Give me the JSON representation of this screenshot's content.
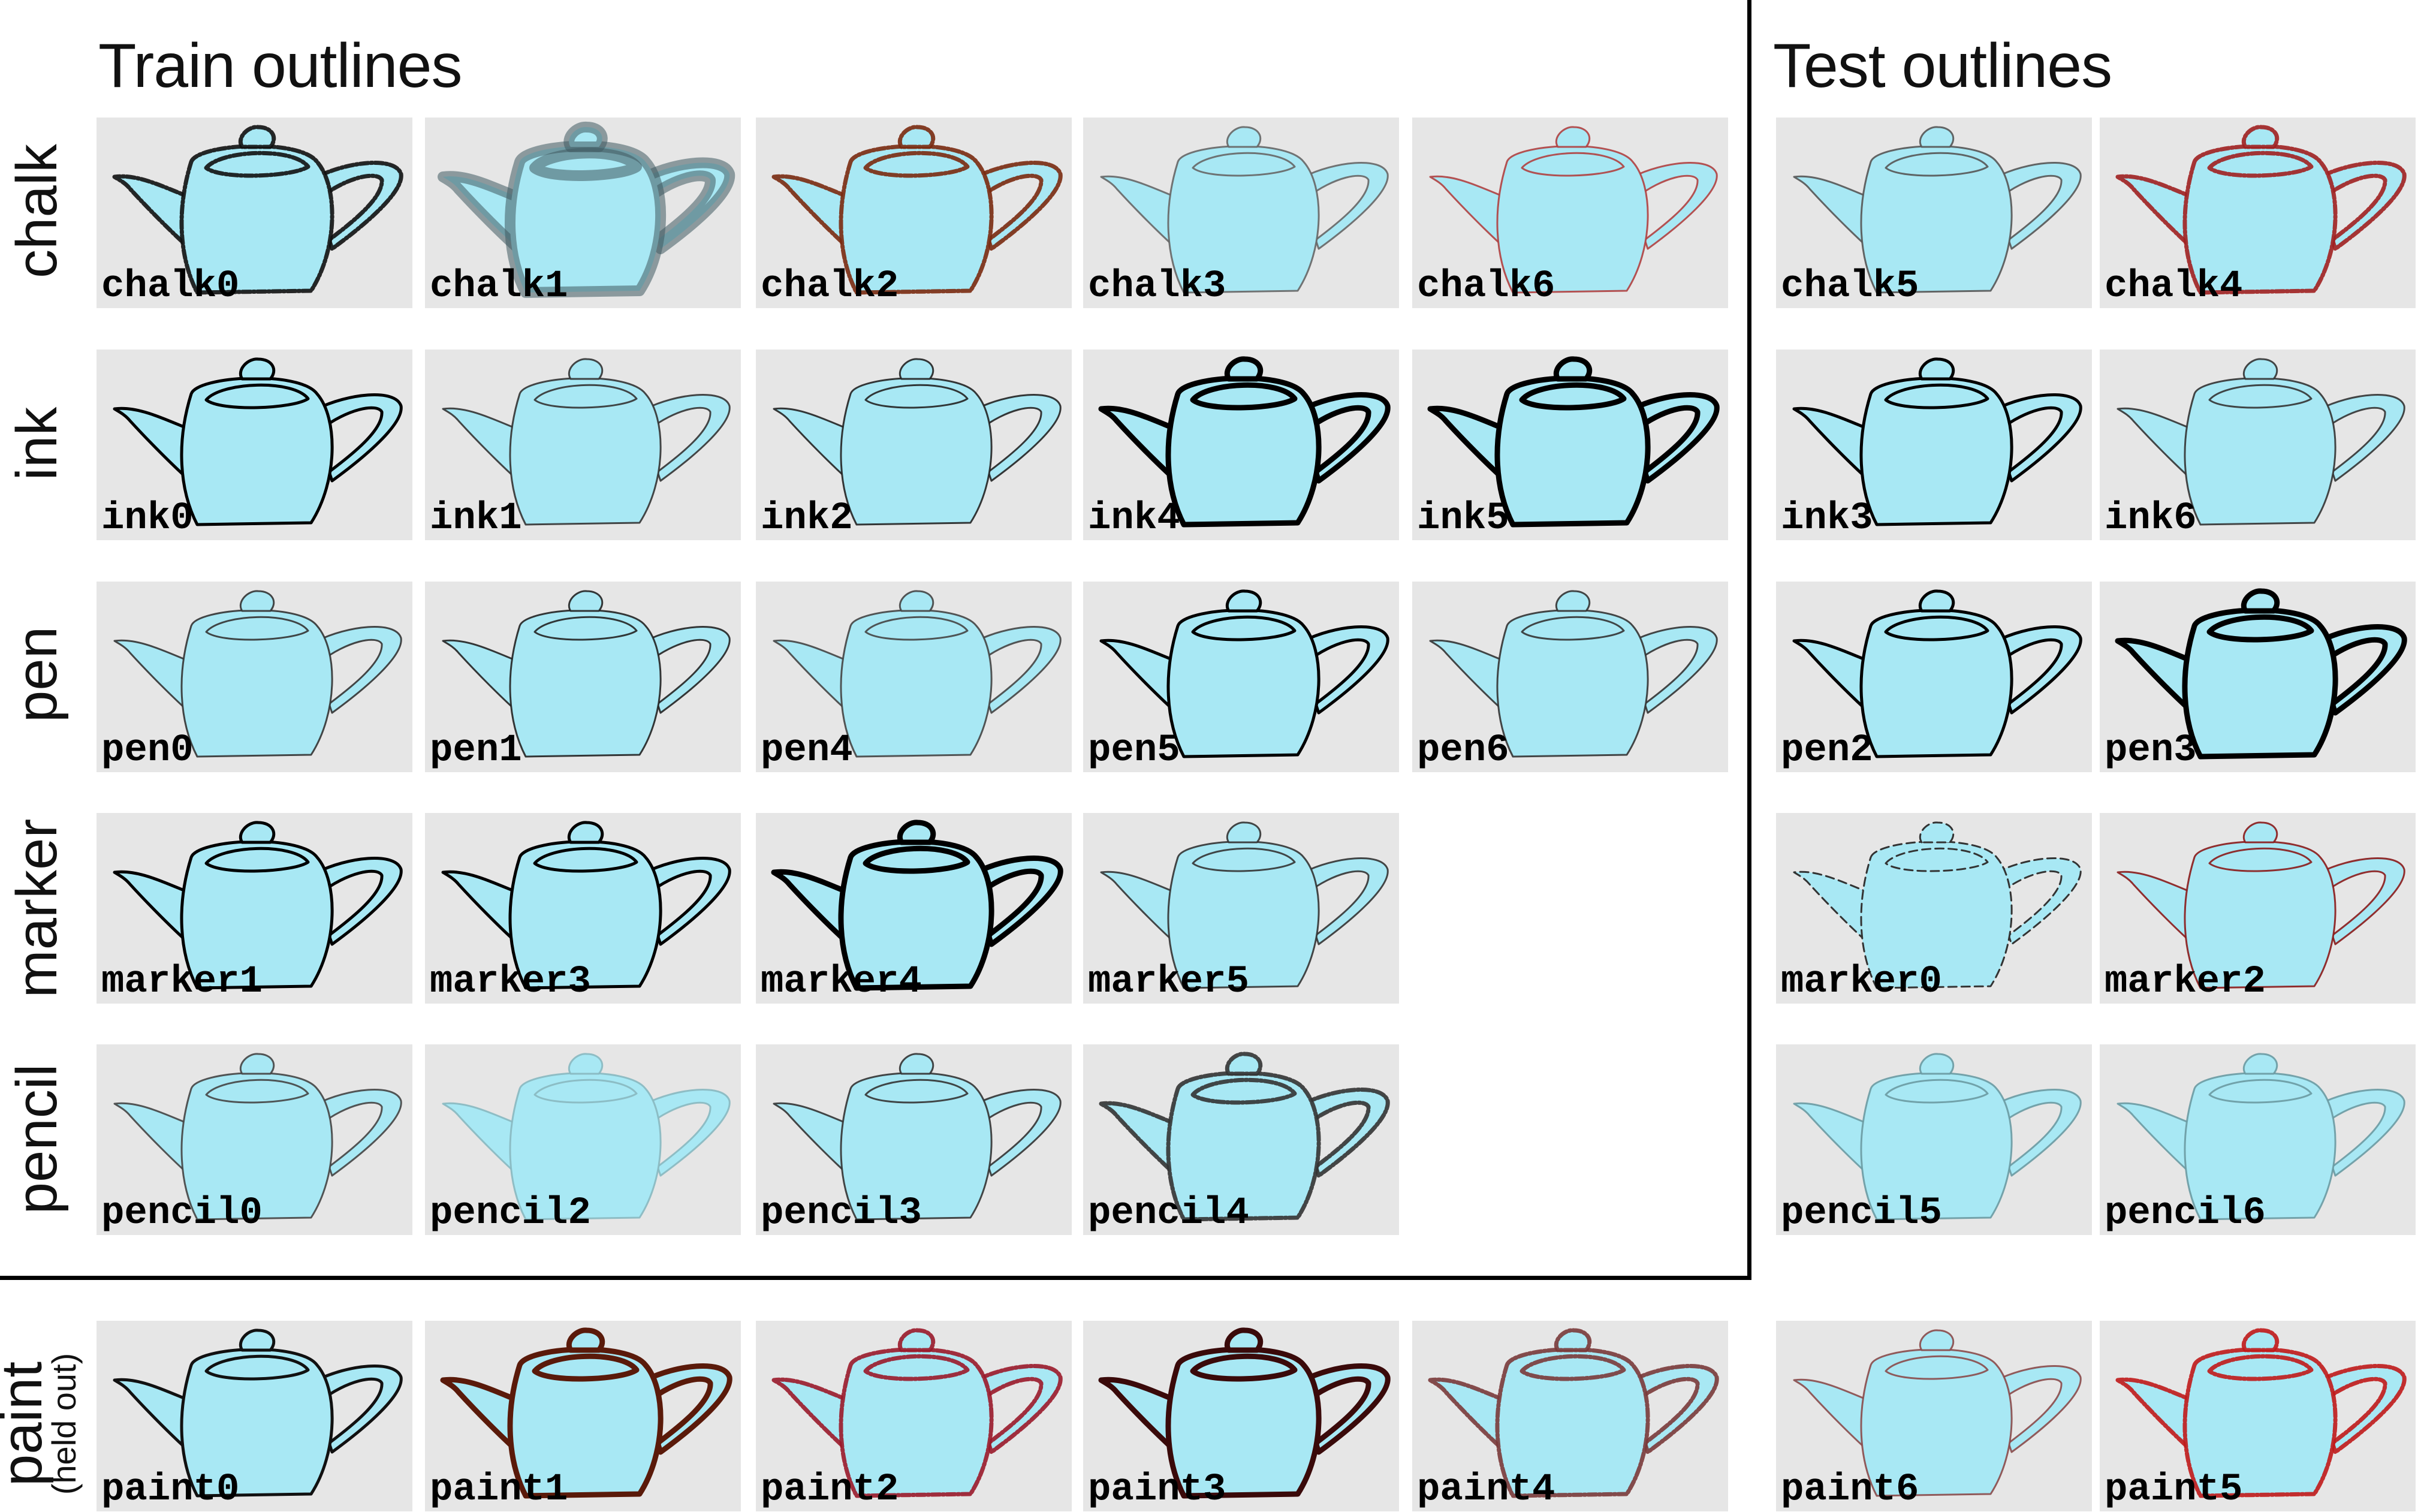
{
  "headings": {
    "train": "Train outlines",
    "test": "Test outlines"
  },
  "row_labels": [
    {
      "label": "chalk",
      "sub": ""
    },
    {
      "label": "ink",
      "sub": ""
    },
    {
      "label": "pen",
      "sub": ""
    },
    {
      "label": "marker",
      "sub": ""
    },
    {
      "label": "pencil",
      "sub": ""
    },
    {
      "label": "paint",
      "sub": "(held out)"
    }
  ],
  "fill_color": "#a8e8f4",
  "tile_background": "#e6e6e6",
  "rows": [
    {
      "train": [
        {
          "label": "chalk0",
          "stroke": "#111111",
          "style": "chalk"
        },
        {
          "label": "chalk1",
          "stroke": "#3f5a60",
          "style": "blur"
        },
        {
          "label": "chalk2",
          "stroke": "#7a2a10",
          "style": "chalk"
        },
        {
          "label": "chalk3",
          "stroke": "#666666",
          "style": "thin"
        },
        {
          "label": "chalk6",
          "stroke": "#b04040",
          "style": "thin"
        }
      ],
      "test": [
        {
          "label": "chalk5",
          "stroke": "#555555",
          "style": "thin"
        },
        {
          "label": "chalk4",
          "stroke": "#a02020",
          "style": "chalk"
        }
      ]
    },
    {
      "train": [
        {
          "label": "ink0",
          "stroke": "#000000",
          "style": "solid"
        },
        {
          "label": "ink1",
          "stroke": "#333333",
          "style": "thin"
        },
        {
          "label": "ink2",
          "stroke": "#222222",
          "style": "thin"
        },
        {
          "label": "ink4",
          "stroke": "#000000",
          "style": "heavy"
        },
        {
          "label": "ink5",
          "stroke": "#000000",
          "style": "heavy"
        }
      ],
      "test": [
        {
          "label": "ink3",
          "stroke": "#000000",
          "style": "solid"
        },
        {
          "label": "ink6",
          "stroke": "#333333",
          "style": "thin"
        }
      ]
    },
    {
      "train": [
        {
          "label": "pen0",
          "stroke": "#333333",
          "style": "thin"
        },
        {
          "label": "pen1",
          "stroke": "#222222",
          "style": "thin"
        },
        {
          "label": "pen4",
          "stroke": "#444444",
          "style": "thin"
        },
        {
          "label": "pen5",
          "stroke": "#000000",
          "style": "solid"
        },
        {
          "label": "pen6",
          "stroke": "#333333",
          "style": "thin"
        }
      ],
      "test": [
        {
          "label": "pen2",
          "stroke": "#000000",
          "style": "solid"
        },
        {
          "label": "pen3",
          "stroke": "#000000",
          "style": "heavy"
        }
      ]
    },
    {
      "train": [
        {
          "label": "marker1",
          "stroke": "#000000",
          "style": "solid"
        },
        {
          "label": "marker3",
          "stroke": "#000000",
          "style": "solid"
        },
        {
          "label": "marker4",
          "stroke": "#000000",
          "style": "heavy"
        },
        {
          "label": "marker5",
          "stroke": "#333333",
          "style": "thin"
        }
      ],
      "test": [
        {
          "label": "marker0",
          "stroke": "#333333",
          "style": "dashed"
        },
        {
          "label": "marker2",
          "stroke": "#8a1a1a",
          "style": "thin"
        }
      ]
    },
    {
      "train": [
        {
          "label": "pencil0",
          "stroke": "#444444",
          "style": "thin"
        },
        {
          "label": "pencil2",
          "stroke": "#88b8c0",
          "style": "thin"
        },
        {
          "label": "pencil3",
          "stroke": "#333333",
          "style": "thin"
        },
        {
          "label": "pencil4",
          "stroke": "#333333",
          "style": "chalk"
        }
      ],
      "test": [
        {
          "label": "pencil5",
          "stroke": "#6a9aa2",
          "style": "thin"
        },
        {
          "label": "pencil6",
          "stroke": "#6a9aa2",
          "style": "thin"
        }
      ]
    },
    {
      "train": [
        {
          "label": "paint0",
          "stroke": "#111111",
          "style": "solid"
        },
        {
          "label": "paint1",
          "stroke": "#5a1a0a",
          "style": "heavy"
        },
        {
          "label": "paint2",
          "stroke": "#9a1a2a",
          "style": "chalk"
        },
        {
          "label": "paint3",
          "stroke": "#3a0a0a",
          "style": "heavy"
        },
        {
          "label": "paint4",
          "stroke": "#7a3a3a",
          "style": "chalk"
        }
      ],
      "test": [
        {
          "label": "paint6",
          "stroke": "#8a4a4a",
          "style": "thin"
        },
        {
          "label": "paint5",
          "stroke": "#c01a1a",
          "style": "chalk"
        }
      ]
    }
  ]
}
